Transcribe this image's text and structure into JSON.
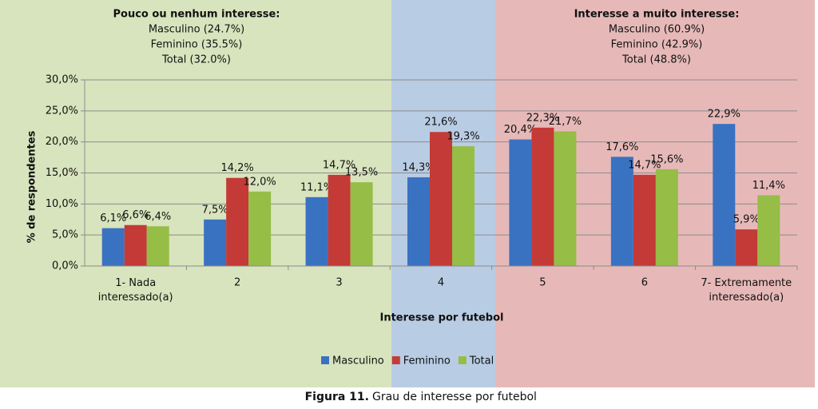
{
  "chart_data": {
    "type": "bar",
    "annotations": [
      {
        "lines": [
          "Pouco ou nenhum interesse:",
          "Masculino (24.7%)",
          "Feminino (35.5%)",
          "Total (32.0%)"
        ]
      },
      {
        "lines": [
          "Interesse a muito interesse:",
          "Masculino (60.9%)",
          "Feminino (42.9%)",
          "Total (48.8%)"
        ]
      }
    ],
    "y_label": "% de respondentes",
    "x_label": "Interesse por futebol",
    "categories": [
      "1- Nada\ninteressado(a)",
      "2",
      "3",
      "4",
      "5",
      "6",
      "7- Extremamente\ninteressado(a)"
    ],
    "series": [
      {
        "name": "Masculino",
        "color": "#3a72c2",
        "values": [
          6.1,
          7.5,
          11.1,
          14.3,
          20.4,
          17.6,
          22.9
        ],
        "value_labels": [
          "6,1%",
          "7,5%",
          "11,1%",
          "14,3%",
          "20,4%",
          "17,6%",
          "22,9%"
        ]
      },
      {
        "name": "Feminino",
        "color": "#c43a36",
        "values": [
          6.6,
          14.2,
          14.7,
          21.6,
          22.3,
          14.7,
          5.9
        ],
        "value_labels": [
          "6,6%",
          "14,2%",
          "14,7%",
          "21,6%",
          "22,3%",
          "14,7%",
          "5,9%"
        ]
      },
      {
        "name": "Total",
        "color": "#96bd46",
        "values": [
          6.4,
          12.0,
          13.5,
          19.3,
          21.7,
          15.6,
          11.4
        ],
        "value_labels": [
          "6,4%",
          "12,0%",
          "13,5%",
          "19,3%",
          "21,7%",
          "15,6%",
          "11,4%"
        ]
      }
    ],
    "ylim": [
      0,
      30
    ],
    "yticks": [
      {
        "value": 0,
        "label": "0,0%"
      },
      {
        "value": 5,
        "label": "5,0%"
      },
      {
        "value": 10,
        "label": "10,0%"
      },
      {
        "value": 15,
        "label": "15,0%"
      },
      {
        "value": 20,
        "label": "20,0%"
      },
      {
        "value": 25,
        "label": "25,0%"
      },
      {
        "value": 30,
        "label": "30,0%"
      }
    ],
    "grid": true,
    "legend": "bottom"
  },
  "caption": {
    "label": "Figura 11.",
    "text": "Grau de interesse por futebol"
  }
}
